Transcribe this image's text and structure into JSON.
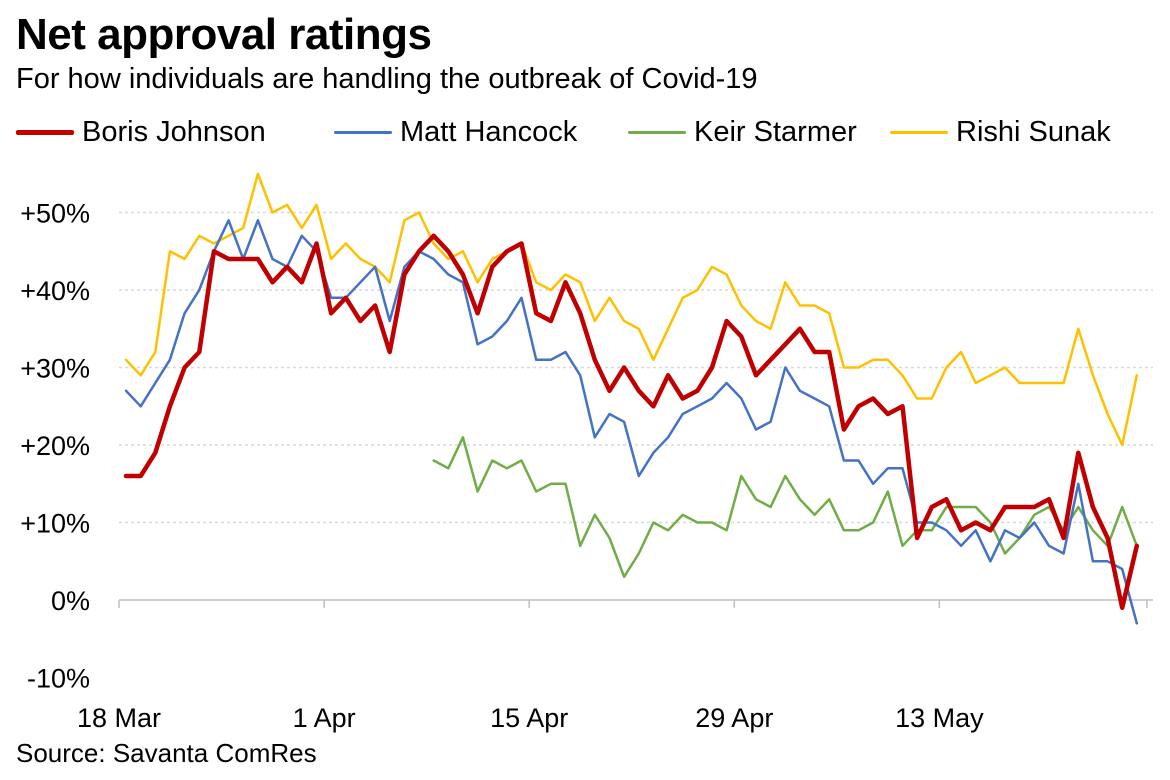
{
  "chart_data": {
    "type": "line",
    "title": "Net approval ratings",
    "subtitle": "For how individuals are handling the outbreak of Covid-19",
    "source": "Source: Savanta ComRes",
    "xlabel": "",
    "ylabel": "",
    "ylim": [
      -10,
      55
    ],
    "yticks": [
      {
        "value": 50,
        "label": "+50%"
      },
      {
        "value": 40,
        "label": "+40%"
      },
      {
        "value": 30,
        "label": "+30%"
      },
      {
        "value": 20,
        "label": "+20%"
      },
      {
        "value": 10,
        "label": "+10%"
      },
      {
        "value": 0,
        "label": "0%"
      },
      {
        "value": -10,
        "label": "-10%"
      }
    ],
    "xticks": [
      {
        "day": 0,
        "label": "18 Mar"
      },
      {
        "day": 14,
        "label": "1 Apr"
      },
      {
        "day": 28,
        "label": "15 Apr"
      },
      {
        "day": 42,
        "label": "29 Apr"
      },
      {
        "day": 56,
        "label": "13 May"
      }
    ],
    "x_start_label": "18 Mar",
    "x_days": 70,
    "grid": "horizontal",
    "legend_position": "top",
    "series": [
      {
        "name": "Boris Johnson",
        "color": "#C00000",
        "width": 4.5,
        "start_day": 0,
        "values": [
          16,
          16,
          19,
          25,
          30,
          32,
          45,
          44,
          44,
          44,
          41,
          43,
          41,
          46,
          37,
          39,
          36,
          38,
          32,
          42,
          45,
          47,
          45,
          42,
          37,
          43,
          45,
          46,
          37,
          36,
          41,
          37,
          31,
          27,
          30,
          27,
          25,
          29,
          26,
          27,
          30,
          36,
          34,
          29,
          31,
          33,
          35,
          32,
          32,
          22,
          25,
          26,
          24,
          25,
          8,
          12,
          13,
          9,
          10,
          9,
          12,
          12,
          12,
          13,
          8,
          19,
          12,
          8,
          -1,
          7
        ]
      },
      {
        "name": "Matt Hancock",
        "color": "#4472C4",
        "width": 2.5,
        "start_day": 0,
        "values": [
          27,
          25,
          28,
          31,
          37,
          40,
          45,
          49,
          44,
          49,
          44,
          43,
          47,
          45,
          39,
          39,
          41,
          43,
          36,
          43,
          45,
          44,
          42,
          41,
          33,
          34,
          36,
          39,
          31,
          31,
          32,
          29,
          21,
          24,
          23,
          16,
          19,
          21,
          24,
          25,
          26,
          28,
          26,
          22,
          23,
          30,
          27,
          26,
          25,
          18,
          18,
          15,
          17,
          17,
          10,
          10,
          9,
          7,
          9,
          5,
          9,
          8,
          10,
          7,
          6,
          15,
          5,
          5,
          4,
          -3
        ]
      },
      {
        "name": "Keir Starmer",
        "color": "#70AD47",
        "width": 2.5,
        "start_day": 21,
        "values": [
          18,
          17,
          21,
          14,
          18,
          17,
          18,
          14,
          15,
          15,
          7,
          11,
          8,
          3,
          6,
          10,
          9,
          11,
          10,
          10,
          9,
          16,
          13,
          12,
          16,
          13,
          11,
          13,
          9,
          9,
          10,
          14,
          7,
          9,
          9,
          12,
          12,
          12,
          10,
          6,
          8,
          11,
          12,
          9,
          12,
          9,
          7,
          12,
          7
        ]
      },
      {
        "name": "Rishi Sunak",
        "color": "#FFC000",
        "width": 2.5,
        "start_day": 0,
        "values": [
          31,
          29,
          32,
          45,
          44,
          47,
          46,
          47,
          48,
          55,
          50,
          51,
          48,
          51,
          44,
          46,
          44,
          43,
          41,
          49,
          50,
          46,
          44,
          45,
          41,
          44,
          45,
          46,
          41,
          40,
          42,
          41,
          36,
          39,
          36,
          35,
          31,
          35,
          39,
          40,
          43,
          42,
          38,
          36,
          35,
          41,
          38,
          38,
          37,
          30,
          30,
          31,
          31,
          29,
          26,
          26,
          30,
          32,
          28,
          29,
          30,
          28,
          28,
          28,
          28,
          35,
          29,
          24,
          20,
          29
        ]
      }
    ]
  }
}
